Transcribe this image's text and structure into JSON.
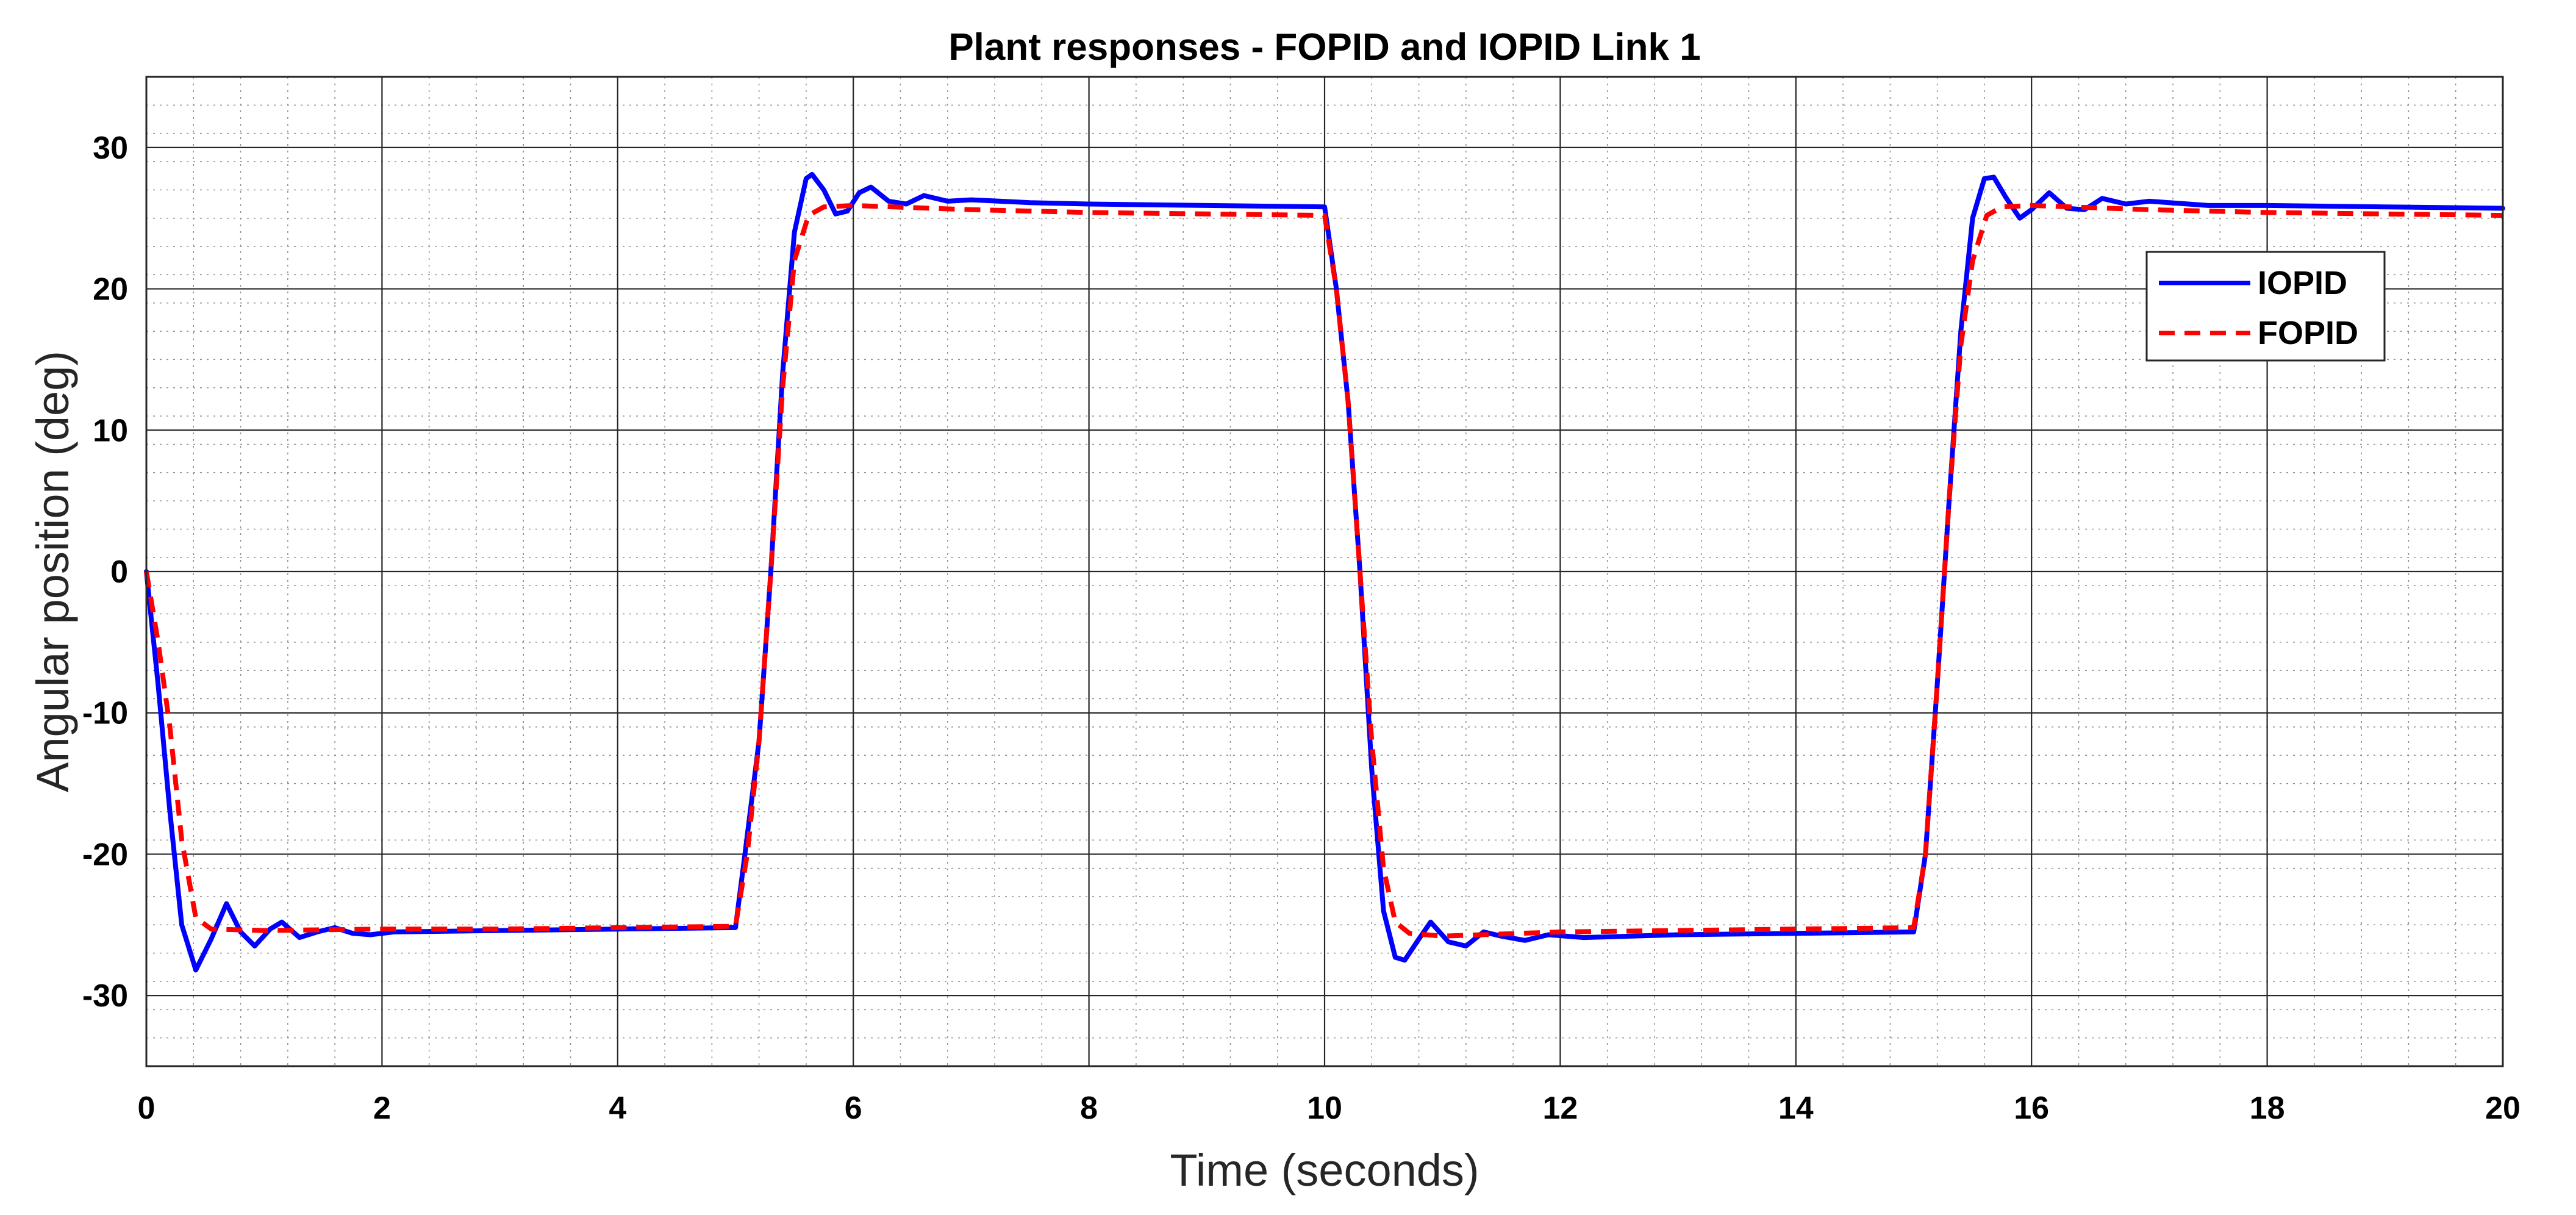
{
  "chart_data": {
    "type": "line",
    "title": "Plant responses - FOPID and IOPID Link 1",
    "xlabel": "Time (seconds)",
    "ylabel": "Angular position (deg)",
    "xlim": [
      0,
      20
    ],
    "ylim": [
      -35,
      35
    ],
    "x_ticks": [
      0,
      2,
      4,
      6,
      8,
      10,
      12,
      14,
      16,
      18,
      20
    ],
    "y_ticks": [
      -30,
      -20,
      -10,
      0,
      10,
      20,
      30
    ],
    "grid": true,
    "minor_grid": true,
    "legend_position": "top-right",
    "series": [
      {
        "name": "IOPID",
        "color": "#0000ff",
        "style": "solid",
        "points": [
          [
            0,
            0
          ],
          [
            0.1,
            -8
          ],
          [
            0.2,
            -17
          ],
          [
            0.3,
            -25
          ],
          [
            0.42,
            -28.2
          ],
          [
            0.55,
            -26
          ],
          [
            0.68,
            -23.5
          ],
          [
            0.8,
            -25.5
          ],
          [
            0.92,
            -26.5
          ],
          [
            1.05,
            -25.3
          ],
          [
            1.15,
            -24.8
          ],
          [
            1.3,
            -25.9
          ],
          [
            1.45,
            -25.5
          ],
          [
            1.6,
            -25.2
          ],
          [
            1.75,
            -25.6
          ],
          [
            1.9,
            -25.7
          ],
          [
            2.1,
            -25.5
          ],
          [
            3,
            -25.4
          ],
          [
            4,
            -25.3
          ],
          [
            5,
            -25.2
          ],
          [
            5.08,
            -20
          ],
          [
            5.2,
            -12
          ],
          [
            5.3,
            0
          ],
          [
            5.4,
            14
          ],
          [
            5.5,
            24
          ],
          [
            5.6,
            27.8
          ],
          [
            5.65,
            28.1
          ],
          [
            5.75,
            27
          ],
          [
            5.85,
            25.3
          ],
          [
            5.95,
            25.5
          ],
          [
            6.05,
            26.8
          ],
          [
            6.15,
            27.2
          ],
          [
            6.3,
            26.2
          ],
          [
            6.45,
            26
          ],
          [
            6.6,
            26.6
          ],
          [
            6.8,
            26.2
          ],
          [
            7,
            26.3
          ],
          [
            7.5,
            26.1
          ],
          [
            8,
            26.0
          ],
          [
            9,
            25.9
          ],
          [
            10,
            25.8
          ],
          [
            10.1,
            20
          ],
          [
            10.2,
            12
          ],
          [
            10.3,
            0
          ],
          [
            10.4,
            -14
          ],
          [
            10.5,
            -24
          ],
          [
            10.6,
            -27.3
          ],
          [
            10.68,
            -27.5
          ],
          [
            10.8,
            -26
          ],
          [
            10.9,
            -24.8
          ],
          [
            11.05,
            -26.2
          ],
          [
            11.2,
            -26.5
          ],
          [
            11.35,
            -25.5
          ],
          [
            11.5,
            -25.8
          ],
          [
            11.7,
            -26.1
          ],
          [
            11.9,
            -25.7
          ],
          [
            12.2,
            -25.9
          ],
          [
            13,
            -25.7
          ],
          [
            14,
            -25.6
          ],
          [
            15,
            -25.5
          ],
          [
            15.1,
            -20
          ],
          [
            15.2,
            -8
          ],
          [
            15.3,
            5
          ],
          [
            15.4,
            17
          ],
          [
            15.5,
            25
          ],
          [
            15.6,
            27.8
          ],
          [
            15.68,
            27.9
          ],
          [
            15.78,
            26.5
          ],
          [
            15.9,
            25
          ],
          [
            16.0,
            25.6
          ],
          [
            16.15,
            26.8
          ],
          [
            16.3,
            25.7
          ],
          [
            16.45,
            25.6
          ],
          [
            16.6,
            26.4
          ],
          [
            16.8,
            26
          ],
          [
            17.0,
            26.2
          ],
          [
            17.5,
            25.9
          ],
          [
            18,
            25.9
          ],
          [
            19,
            25.8
          ],
          [
            20,
            25.7
          ]
        ]
      },
      {
        "name": "FOPID",
        "color": "#ff0000",
        "style": "dashed",
        "points": [
          [
            0,
            0
          ],
          [
            0.1,
            -5
          ],
          [
            0.2,
            -11
          ],
          [
            0.3,
            -19
          ],
          [
            0.42,
            -24.5
          ],
          [
            0.55,
            -25.3
          ],
          [
            1,
            -25.4
          ],
          [
            2,
            -25.3
          ],
          [
            3,
            -25.3
          ],
          [
            4,
            -25.2
          ],
          [
            5,
            -25.1
          ],
          [
            5.1,
            -20
          ],
          [
            5.2,
            -12
          ],
          [
            5.3,
            0
          ],
          [
            5.4,
            13
          ],
          [
            5.5,
            22
          ],
          [
            5.62,
            25.2
          ],
          [
            5.75,
            25.8
          ],
          [
            6,
            25.9
          ],
          [
            7,
            25.6
          ],
          [
            8,
            25.4
          ],
          [
            9,
            25.3
          ],
          [
            10,
            25.2
          ],
          [
            10.1,
            20
          ],
          [
            10.2,
            12
          ],
          [
            10.3,
            0
          ],
          [
            10.4,
            -12
          ],
          [
            10.5,
            -21
          ],
          [
            10.6,
            -24.8
          ],
          [
            10.72,
            -25.6
          ],
          [
            11,
            -25.8
          ],
          [
            12,
            -25.5
          ],
          [
            13,
            -25.4
          ],
          [
            14,
            -25.3
          ],
          [
            15,
            -25.2
          ],
          [
            15.1,
            -20
          ],
          [
            15.2,
            -8
          ],
          [
            15.3,
            5
          ],
          [
            15.4,
            16
          ],
          [
            15.5,
            22
          ],
          [
            15.62,
            25.2
          ],
          [
            15.75,
            25.8
          ],
          [
            16,
            25.9
          ],
          [
            17,
            25.6
          ],
          [
            18,
            25.4
          ],
          [
            19,
            25.3
          ],
          [
            20,
            25.2
          ]
        ]
      }
    ]
  }
}
